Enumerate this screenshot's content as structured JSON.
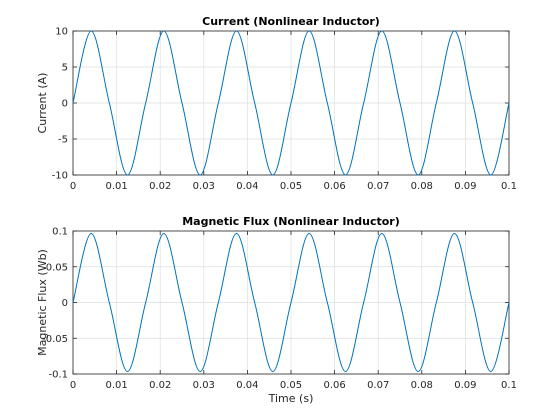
{
  "chart_data": [
    {
      "type": "line",
      "title": "Current (Nonlinear Inductor)",
      "xlabel": "",
      "ylabel": "Current (A)",
      "xlim": [
        0,
        0.1
      ],
      "ylim": [
        -10,
        10
      ],
      "x_ticks": [
        "0",
        "0.01",
        "0.02",
        "0.03",
        "0.04",
        "0.05",
        "0.06",
        "0.07",
        "0.08",
        "0.09",
        "0.1"
      ],
      "y_ticks": [
        "-10",
        "-5",
        "0",
        "5",
        "10"
      ],
      "grid": true,
      "color": "#0072bd",
      "series": [
        {
          "x": [
            0,
            0.004167,
            0.008333,
            0.0125,
            0.016667,
            0.020833,
            0.025,
            0.029167,
            0.033333,
            0.0375,
            0.041667,
            0.045833,
            0.05,
            0.054167,
            0.058333,
            0.0625,
            0.066667,
            0.070833,
            0.075,
            0.079167,
            0.083333,
            0.0875,
            0.091667,
            0.095833,
            0.1
          ],
          "values": [
            0,
            10,
            0,
            -10,
            0,
            10,
            0,
            -10,
            0,
            10,
            0,
            -10,
            0,
            10,
            0,
            -10,
            0,
            10,
            0,
            -10,
            0,
            10,
            0,
            -10,
            0
          ]
        }
      ]
    },
    {
      "type": "line",
      "title": "Magnetic Flux (Nonlinear Inductor)",
      "xlabel": "Time (s)",
      "ylabel": "Magnetic Flux (Wb)",
      "xlim": [
        0,
        0.1
      ],
      "ylim": [
        -0.1,
        0.1
      ],
      "x_ticks": [
        "0",
        "0.01",
        "0.02",
        "0.03",
        "0.04",
        "0.05",
        "0.06",
        "0.07",
        "0.08",
        "0.09",
        "0.1"
      ],
      "y_ticks": [
        "-0.1",
        "-0.05",
        "0",
        "0.05",
        "0.1"
      ],
      "grid": true,
      "color": "#0072bd",
      "series": [
        {
          "x": [
            0,
            0.004167,
            0.008333,
            0.0125,
            0.016667,
            0.020833,
            0.025,
            0.029167,
            0.033333,
            0.0375,
            0.041667,
            0.045833,
            0.05,
            0.054167,
            0.058333,
            0.0625,
            0.066667,
            0.070833,
            0.075,
            0.079167,
            0.083333,
            0.0875,
            0.091667,
            0.095833,
            0.1
          ],
          "values": [
            0,
            0.0965,
            0,
            -0.0965,
            0,
            0.0965,
            0,
            -0.0965,
            0,
            0.0965,
            0,
            -0.0965,
            0,
            0.0965,
            0,
            -0.0965,
            0,
            0.0965,
            0,
            -0.0965,
            0,
            0.0965,
            0,
            -0.0965,
            0
          ]
        }
      ]
    }
  ]
}
